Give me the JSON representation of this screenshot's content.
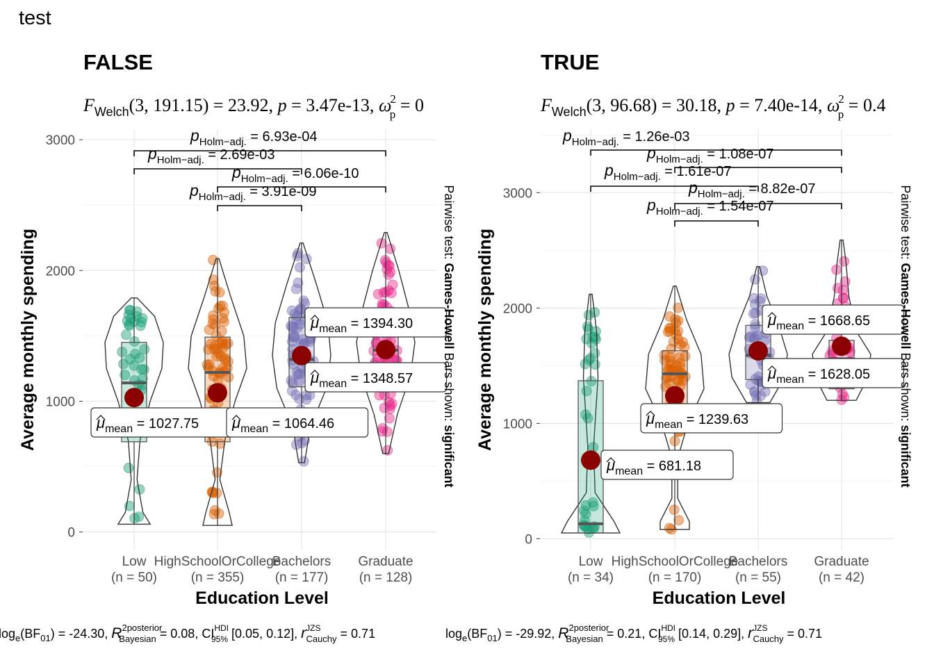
{
  "title": "test",
  "chart_data": [
    {
      "type": "violin",
      "title": "FALSE",
      "subtitle": "F Welch(3, 191.15) = 23.92, p = 3.47e-13, ω²p = 0",
      "xlabel": "Education Level",
      "ylabel": "Average monthly spending",
      "ylim": [
        -140,
        3080
      ],
      "yticks": [
        0,
        1000,
        2000,
        3000
      ],
      "categories": [
        "Low",
        "HighSchoolOrCollege",
        "Bachelors",
        "Graduate"
      ],
      "n_labels": [
        "(n = 50)",
        "(n = 355)",
        "(n = 177)",
        "(n = 128)"
      ],
      "colors": [
        "#1B9E77",
        "#D95F02",
        "#7570B3",
        "#E7298A"
      ],
      "means": [
        1027.75,
        1064.46,
        1348.57,
        1394.3
      ],
      "mean_labels": [
        "1027.75",
        "1064.46",
        "1348.57",
        "1394.30"
      ],
      "box": [
        {
          "q1": 690,
          "median": 1140,
          "q3": 1450,
          "lo": 60,
          "hi": 1790
        },
        {
          "q1": 690,
          "median": 1220,
          "q3": 1490,
          "lo": 50,
          "hi": 2090
        },
        {
          "q1": 1110,
          "median": 1320,
          "q3": 1640,
          "lo": 530,
          "hi": 2210
        },
        {
          "q1": 1140,
          "median": 1390,
          "q3": 1640,
          "lo": 600,
          "hi": 2290
        }
      ],
      "pairwise": [
        {
          "from": 1,
          "to": 4,
          "label": "6.93e-04"
        },
        {
          "from": 1,
          "to": 3,
          "label": "2.69e-03"
        },
        {
          "from": 2,
          "to": 4,
          "label": "6.06e-10"
        },
        {
          "from": 2,
          "to": 3,
          "label": "3.91e-09"
        }
      ],
      "caption": "Pairwise test: Games-Howell Bars shown: significant",
      "bayes": "loge(BF01) = -24.30, R² posterior Bayesian = 0.08, CI HDI 95% [0.05, 0.12], r JZS Cauchy = 0.71"
    },
    {
      "type": "violin",
      "title": "TRUE",
      "subtitle": "F Welch(3, 96.68) = 30.18, p = 7.40e-14, ω²p = 0.4",
      "xlabel": "Education Level",
      "ylabel": "Average monthly spending",
      "ylim": [
        -100,
        3550
      ],
      "yticks": [
        0,
        1000,
        2000,
        3000
      ],
      "categories": [
        "Low",
        "HighSchoolOrCollege",
        "Bachelors",
        "Graduate"
      ],
      "n_labels": [
        "(n = 34)",
        "(n = 170)",
        "(n = 55)",
        "(n = 42)"
      ],
      "colors": [
        "#1B9E77",
        "#D95F02",
        "#7570B3",
        "#E7298A"
      ],
      "means": [
        681.18,
        1239.63,
        1628.05,
        1668.65
      ],
      "mean_labels": [
        "681.18",
        "1239.63",
        "1628.05",
        "1668.65"
      ],
      "box": [
        {
          "q1": 50,
          "median": 130,
          "q3": 1370,
          "lo": 50,
          "hi": 2120
        },
        {
          "q1": 1000,
          "median": 1430,
          "q3": 1630,
          "lo": 80,
          "hi": 2190
        },
        {
          "q1": 1380,
          "median": 1590,
          "q3": 1850,
          "lo": 1180,
          "hi": 2360
        },
        {
          "q1": 1300,
          "median": 1560,
          "q3": 1720,
          "lo": 1200,
          "hi": 2590
        }
      ],
      "pairwise": [
        {
          "from": 1,
          "to": 4,
          "label": "1.26e-03"
        },
        {
          "from": 2,
          "to": 4,
          "label": "1.08e-07"
        },
        {
          "from": 1,
          "to": 3,
          "label": "1.61e-07"
        },
        {
          "from": 2,
          "to": 4,
          "label": "8.82e-07"
        },
        {
          "from": 2,
          "to": 3,
          "label": "1.54e-07"
        }
      ],
      "caption": "Pairwise test: Games-Howell Bars shown: significant",
      "bayes": "loge(BF01) = -29.92, R² posterior Bayesian = 0.21, CI HDI 95% [0.14, 0.29], r JZS Cauchy = 0.71"
    }
  ]
}
